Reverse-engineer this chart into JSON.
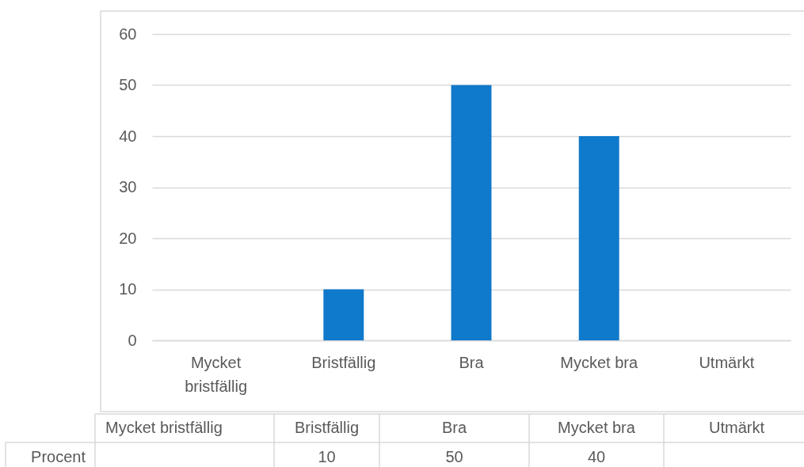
{
  "chart_data": {
    "type": "bar",
    "categories": [
      "Mycket bristfällig",
      "Bristfällig",
      "Bra",
      "Mycket bra",
      "Utmärkt"
    ],
    "series": [
      {
        "name": "Procent",
        "color": "#0f79cb",
        "values": [
          null,
          10,
          50,
          40,
          null
        ]
      }
    ],
    "ylim": [
      0,
      60
    ],
    "yticks": [
      0,
      10,
      20,
      30,
      40,
      50,
      60
    ],
    "grid": "y",
    "data_labels": true
  }
}
